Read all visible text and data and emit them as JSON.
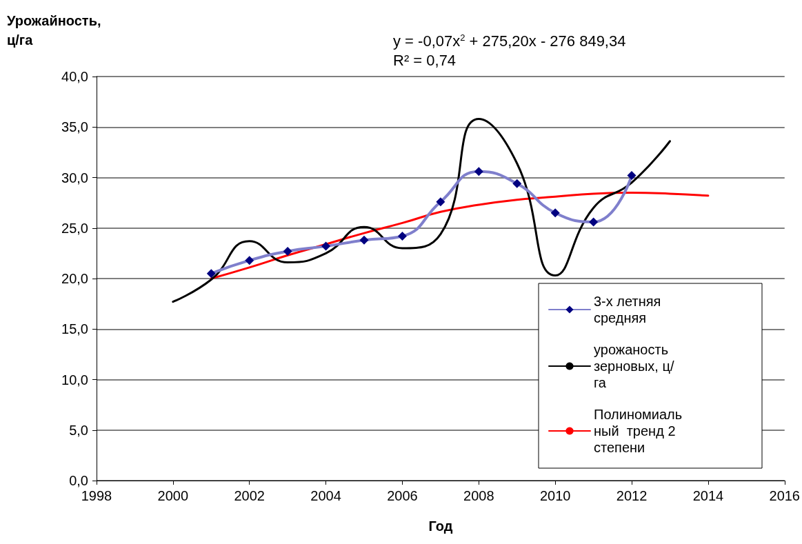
{
  "chart_data": {
    "type": "line",
    "ylabel": "Урожайность, ц/га",
    "xlabel": "Год",
    "annotations": [
      "y = -0,07x$^{2}$ + 275,20x - 276 849,34",
      "R² = 0,74"
    ],
    "xlim": [
      1998,
      2016
    ],
    "xticks": [
      1998,
      2000,
      2002,
      2004,
      2006,
      2008,
      2010,
      2012,
      2014,
      2016
    ],
    "ylim": [
      0,
      40
    ],
    "yticks": [
      {
        "value": 0,
        "label": "0,0"
      },
      {
        "value": 5,
        "label": "5,0"
      },
      {
        "value": 10,
        "label": "10,0"
      },
      {
        "value": 15,
        "label": "15,0"
      },
      {
        "value": 20,
        "label": "20,0"
      },
      {
        "value": 25,
        "label": "25,0"
      },
      {
        "value": 30,
        "label": "30,0"
      },
      {
        "value": 35,
        "label": "35,0"
      },
      {
        "value": 40,
        "label": "40,0"
      }
    ],
    "grid": "y",
    "legend": "bottom right",
    "series": [
      {
        "name": "3-х летняя средняя",
        "color": "#000080",
        "marker": "diamond",
        "x": [
          2001,
          2002,
          2003,
          2004,
          2005,
          2006,
          2007,
          2008,
          2009,
          2010,
          2011,
          2012
        ],
        "values": [
          20.5,
          21.8,
          22.7,
          23.2,
          23.8,
          24.2,
          27.6,
          30.6,
          29.4,
          26.5,
          25.6,
          30.2
        ]
      },
      {
        "name": "урожаность зерновых, ц/га",
        "color": "#000000",
        "marker": "none",
        "x": [
          2000,
          2001,
          2002,
          2003,
          2004,
          2005,
          2006,
          2007,
          2008,
          2009,
          2010,
          2011,
          2012,
          2013
        ],
        "values": [
          17.7,
          19.9,
          23.7,
          21.6,
          22.5,
          25.1,
          23.0,
          24.4,
          35.8,
          31.4,
          20.3,
          27.0,
          29.5,
          33.6
        ]
      },
      {
        "name": "Полиномиальный  тренд 2 степени",
        "color": "#ff0000",
        "marker": "none",
        "x": [
          2001,
          2002,
          2003,
          2004,
          2005,
          2006,
          2007,
          2008,
          2009,
          2010,
          2011,
          2012,
          2013,
          2014
        ],
        "values": [
          20.0,
          21.1,
          22.3,
          23.4,
          24.5,
          25.5,
          26.6,
          27.3,
          27.8,
          28.1,
          28.4,
          28.5,
          28.4,
          28.2
        ]
      }
    ]
  }
}
